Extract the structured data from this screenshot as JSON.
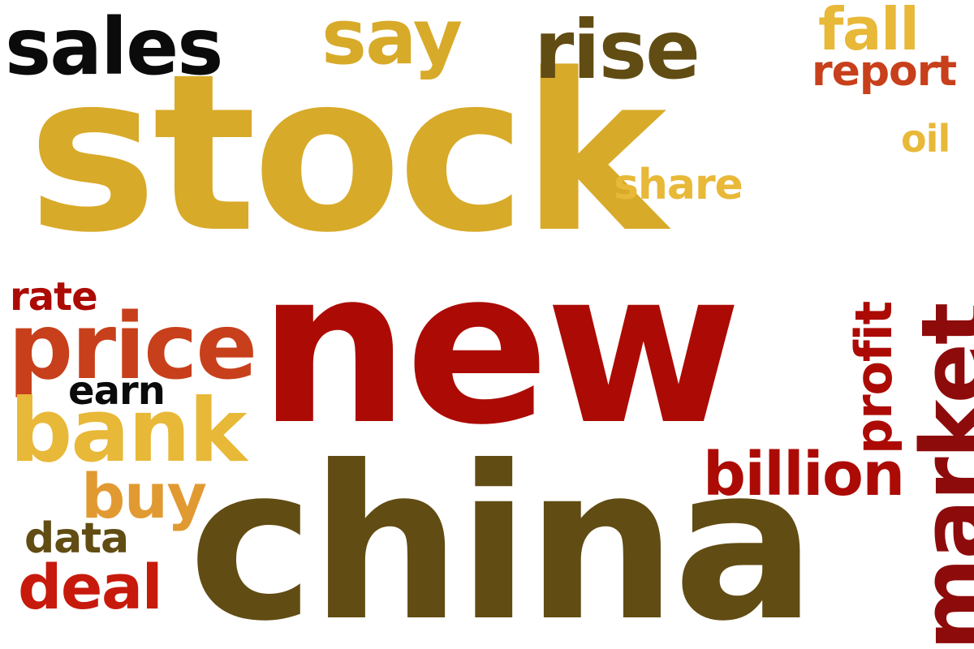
{
  "words": [
    {
      "text": "stock",
      "color": "#D8AA29"
    },
    {
      "text": "new",
      "color": "#AC0B05"
    },
    {
      "text": "china",
      "color": "#614C13"
    },
    {
      "text": "market",
      "color": "#8E0B0C"
    },
    {
      "text": "price",
      "color": "#C7401B"
    },
    {
      "text": "bank",
      "color": "#E8B838"
    },
    {
      "text": "sales",
      "color": "#0B0B0B"
    },
    {
      "text": "rise",
      "color": "#614C13"
    },
    {
      "text": "say",
      "color": "#D8AA29"
    },
    {
      "text": "billion",
      "color": "#AC0B05"
    },
    {
      "text": "fall",
      "color": "#E8B838"
    },
    {
      "text": "profit",
      "color": "#AC0B05"
    },
    {
      "text": "buy",
      "color": "#E19A32"
    },
    {
      "text": "deal",
      "color": "#C71A0C"
    },
    {
      "text": "report",
      "color": "#C7401B"
    },
    {
      "text": "share",
      "color": "#E8B838"
    },
    {
      "text": "data",
      "color": "#614C13"
    },
    {
      "text": "rate",
      "color": "#AC0B05"
    },
    {
      "text": "earn",
      "color": "#0B0B0B"
    },
    {
      "text": "oil",
      "color": "#E8B838"
    }
  ]
}
